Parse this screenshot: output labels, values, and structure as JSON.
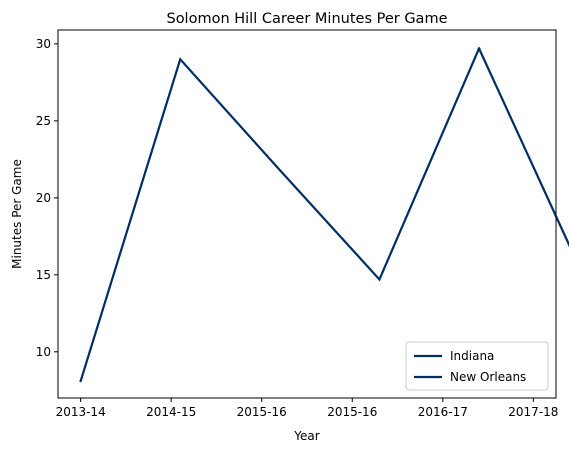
{
  "chart_data": {
    "type": "line",
    "title": "Solomon Hill  Career Minutes Per Game",
    "xlabel": "Year",
    "ylabel": "Minutes Per Game",
    "x_tick_labels": [
      "2013-14",
      "2014-15",
      "2015-16",
      "2015-16",
      "2016-17",
      "2017-18"
    ],
    "xlim": [
      -0.25,
      5.25
    ],
    "ylim": [
      7.0,
      30.9
    ],
    "y_ticks": [
      10,
      15,
      20,
      25,
      30
    ],
    "grid": false,
    "legend_location": "lower right",
    "series": [
      {
        "name": "Indiana",
        "color": "#002D62",
        "x": [
          0,
          1.1,
          2.2,
          3.3,
          4.4
        ],
        "y": [
          8.1,
          29.0,
          21.8,
          14.7,
          29.7
        ]
      },
      {
        "name": "New Orleans",
        "color": "#002D62",
        "x": [
          4.4,
          5.5
        ],
        "y": [
          29.7,
          15.6
        ]
      }
    ]
  }
}
